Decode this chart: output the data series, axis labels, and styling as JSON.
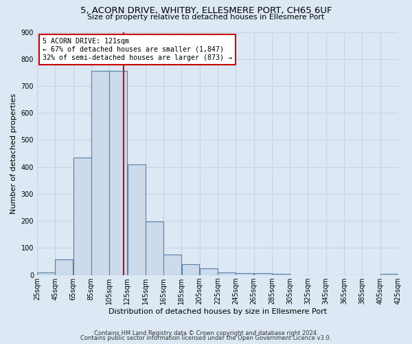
{
  "title": "5, ACORN DRIVE, WHITBY, ELLESMERE PORT, CH65 6UF",
  "subtitle": "Size of property relative to detached houses in Ellesmere Port",
  "xlabel": "Distribution of detached houses by size in Ellesmere Port",
  "ylabel": "Number of detached properties",
  "footnote1": "Contains HM Land Registry data © Crown copyright and database right 2024.",
  "footnote2": "Contains public sector information licensed under the Open Government Licence v3.0.",
  "bin_labels": [
    "25sqm",
    "45sqm",
    "65sqm",
    "85sqm",
    "105sqm",
    "125sqm",
    "145sqm",
    "165sqm",
    "185sqm",
    "205sqm",
    "225sqm",
    "245sqm",
    "265sqm",
    "285sqm",
    "305sqm",
    "325sqm",
    "345sqm",
    "365sqm",
    "385sqm",
    "405sqm",
    "425sqm"
  ],
  "bin_edges": [
    25,
    45,
    65,
    85,
    105,
    125,
    145,
    165,
    185,
    205,
    225,
    245,
    265,
    285,
    305,
    325,
    345,
    365,
    385,
    405,
    425
  ],
  "bar_values": [
    10,
    58,
    435,
    755,
    755,
    410,
    198,
    75,
    40,
    25,
    10,
    8,
    8,
    4,
    0,
    0,
    0,
    0,
    0,
    5
  ],
  "bar_color": "#ccdaeb",
  "bar_edge_color": "#5580aa",
  "property_sqm": 121,
  "annotation_title": "5 ACORN DRIVE: 121sqm",
  "annotation_line1": "← 67% of detached houses are smaller (1,847)",
  "annotation_line2": "32% of semi-detached houses are larger (873) →",
  "vline_color": "#cc0000",
  "annotation_box_facecolor": "#ffffff",
  "annotation_box_edgecolor": "#cc0000",
  "grid_color": "#c8d4e4",
  "bg_color": "#dce8f4",
  "fig_bg_color": "#dce8f4",
  "ylim": [
    0,
    900
  ],
  "yticks": [
    0,
    100,
    200,
    300,
    400,
    500,
    600,
    700,
    800,
    900
  ],
  "title_fontsize": 9.5,
  "subtitle_fontsize": 8.0,
  "ylabel_fontsize": 8.0,
  "xlabel_fontsize": 8.0,
  "tick_fontsize": 7.0,
  "footnote_fontsize": 6.0
}
